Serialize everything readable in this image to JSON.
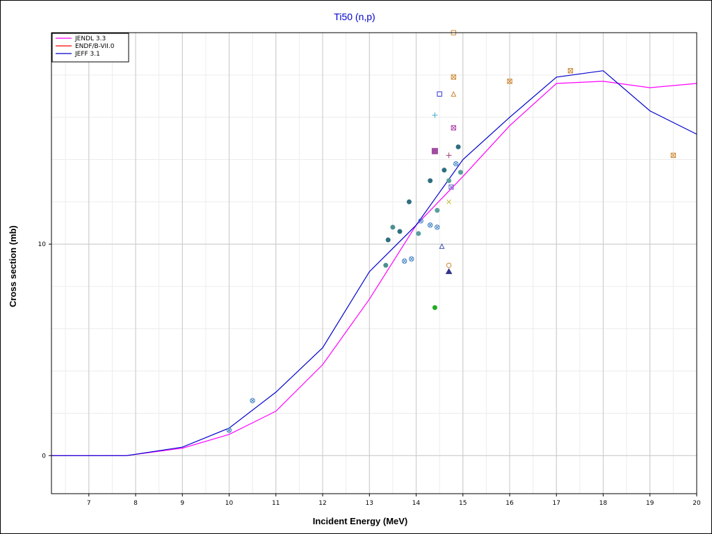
{
  "chart_data": {
    "type": "line",
    "title": "Ti50 (n,p)",
    "xlabel": "Incident Energy (MeV)",
    "ylabel": "Cross section (mb)",
    "xlim": [
      6.2,
      20
    ],
    "ylim": [
      -1.8,
      20
    ],
    "x_ticks": [
      7,
      8,
      9,
      10,
      11,
      12,
      13,
      14,
      15,
      16,
      17,
      18,
      19,
      20
    ],
    "y_ticks": [
      0,
      10
    ],
    "grid": true,
    "legend_position": "top-left",
    "series": [
      {
        "name": "JENDL 3.3",
        "color": "#ff00ff",
        "x": [
          6.2,
          7.8,
          9,
          10,
          11,
          12,
          13,
          14,
          15,
          16,
          17,
          18,
          19,
          20
        ],
        "y": [
          0,
          0,
          0.35,
          1.0,
          2.1,
          4.3,
          7.4,
          10.9,
          13.2,
          15.6,
          17.6,
          17.7,
          17.4,
          17.6
        ]
      },
      {
        "name": "ENDF/B-VII.0",
        "color": "#ff0000",
        "x": [],
        "y": []
      },
      {
        "name": "JEFF 3.1",
        "color": "#0000cc",
        "x": [
          6.2,
          7.8,
          9,
          10,
          11,
          12,
          13,
          14,
          15,
          16,
          17,
          18,
          19,
          20
        ],
        "y": [
          0,
          0,
          0.4,
          1.3,
          3.0,
          5.1,
          8.7,
          10.9,
          14.0,
          16.0,
          17.9,
          18.2,
          16.3,
          15.2
        ]
      }
    ],
    "experimental_points": [
      {
        "x": 10.0,
        "y": 1.2,
        "marker": "circle-x",
        "color": "#3a7bbf"
      },
      {
        "x": 10.5,
        "y": 2.6,
        "marker": "circle-x",
        "color": "#3a7bbf"
      },
      {
        "x": 13.35,
        "y": 9.0,
        "marker": "dot",
        "color": "#4a8f8f"
      },
      {
        "x": 13.4,
        "y": 10.2,
        "marker": "dot",
        "color": "#2f6f7f"
      },
      {
        "x": 13.5,
        "y": 10.8,
        "marker": "dot",
        "color": "#4a8f8f"
      },
      {
        "x": 13.65,
        "y": 10.6,
        "marker": "dot",
        "color": "#2f6f7f"
      },
      {
        "x": 13.75,
        "y": 9.2,
        "marker": "circle-x",
        "color": "#3a7bbf"
      },
      {
        "x": 13.85,
        "y": 12.0,
        "marker": "dot",
        "color": "#2f6f7f"
      },
      {
        "x": 13.9,
        "y": 9.3,
        "marker": "circle-x",
        "color": "#3a7bbf"
      },
      {
        "x": 14.05,
        "y": 10.5,
        "marker": "dot",
        "color": "#5a9f9f"
      },
      {
        "x": 14.1,
        "y": 11.1,
        "marker": "circle-x",
        "color": "#3a7bbf"
      },
      {
        "x": 14.3,
        "y": 13.0,
        "marker": "dot",
        "color": "#2f6f7f"
      },
      {
        "x": 14.3,
        "y": 10.9,
        "marker": "circle-x",
        "color": "#3a7bbf"
      },
      {
        "x": 14.4,
        "y": 7.0,
        "marker": "dot",
        "color": "#22aa22"
      },
      {
        "x": 14.4,
        "y": 14.4,
        "marker": "square-filled",
        "color": "#a04ca0"
      },
      {
        "x": 14.4,
        "y": 16.1,
        "marker": "plus",
        "color": "#44aacc"
      },
      {
        "x": 14.45,
        "y": 11.6,
        "marker": "dot",
        "color": "#5a9f9f"
      },
      {
        "x": 14.45,
        "y": 10.8,
        "marker": "circle-x",
        "color": "#3a7bbf"
      },
      {
        "x": 14.5,
        "y": 17.1,
        "marker": "square",
        "color": "#3333cc"
      },
      {
        "x": 14.55,
        "y": 9.9,
        "marker": "triangle",
        "color": "#4455aa"
      },
      {
        "x": 14.6,
        "y": 13.5,
        "marker": "dot",
        "color": "#2f6f7f"
      },
      {
        "x": 14.7,
        "y": 13.0,
        "marker": "dot",
        "color": "#5a9f9f"
      },
      {
        "x": 14.7,
        "y": 14.2,
        "marker": "plus",
        "color": "#a04070"
      },
      {
        "x": 14.7,
        "y": 12.0,
        "marker": "x",
        "color": "#bbbb22"
      },
      {
        "x": 14.7,
        "y": 9.0,
        "marker": "circle",
        "color": "#cc8833"
      },
      {
        "x": 14.7,
        "y": 8.7,
        "marker": "triangle-filled",
        "color": "#333388"
      },
      {
        "x": 14.75,
        "y": 12.7,
        "marker": "square-x",
        "color": "#7777cc"
      },
      {
        "x": 14.8,
        "y": 20.0,
        "marker": "square",
        "color": "#cc8833"
      },
      {
        "x": 14.8,
        "y": 17.9,
        "marker": "square-x",
        "color": "#cc8833"
      },
      {
        "x": 14.8,
        "y": 17.1,
        "marker": "triangle",
        "color": "#cc8833"
      },
      {
        "x": 14.8,
        "y": 15.5,
        "marker": "square-x",
        "color": "#aa44aa"
      },
      {
        "x": 14.85,
        "y": 13.8,
        "marker": "circle-x",
        "color": "#3a7bbf"
      },
      {
        "x": 14.9,
        "y": 14.6,
        "marker": "dot",
        "color": "#2f6f7f"
      },
      {
        "x": 14.95,
        "y": 13.4,
        "marker": "dot",
        "color": "#5a9f9f"
      },
      {
        "x": 16.0,
        "y": 17.7,
        "marker": "square-x",
        "color": "#cc8833"
      },
      {
        "x": 17.3,
        "y": 18.2,
        "marker": "square-x",
        "color": "#cc8833"
      },
      {
        "x": 19.5,
        "y": 14.2,
        "marker": "square-x",
        "color": "#cc8833"
      }
    ]
  }
}
